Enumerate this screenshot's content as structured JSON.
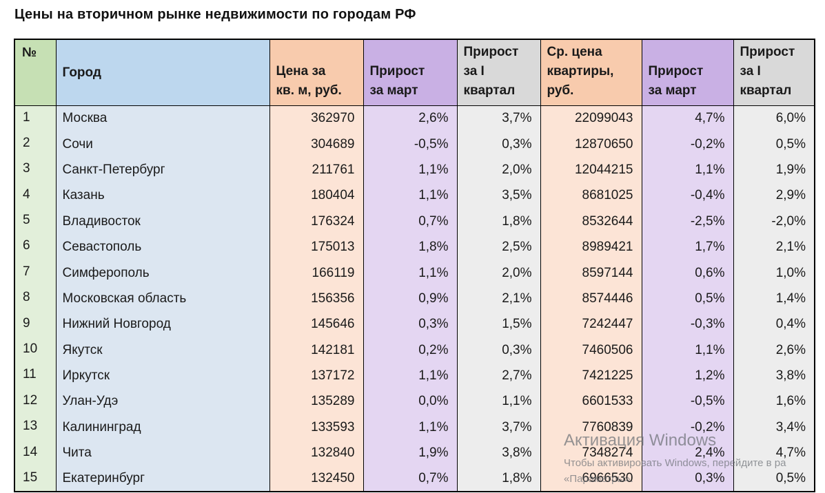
{
  "page": {
    "title": "Цены на вторичном рынке недвижимости по городам РФ"
  },
  "watermark": {
    "line1": "Активация Windows",
    "line2": "Чтобы активировать Windows, перейдите в ра",
    "line3": "«Параметры»."
  },
  "colors": {
    "header_green": "#c6e0b4",
    "body_green": "#e2efda",
    "header_blue": "#bdd7ee",
    "body_blue": "#dce6f1",
    "header_orange": "#f8cbad",
    "body_orange": "#fce4d6",
    "header_purple": "#c9b0e4",
    "body_purple": "#e4d6f2",
    "header_gray": "#d9d9d9",
    "body_gray": "#ededed",
    "border": "#000000"
  },
  "chart_data": {
    "type": "table",
    "title": "Цены на вторичном рынке недвижимости по городам РФ",
    "columns": [
      "№",
      "Город",
      "Цена за кв. м, руб.",
      "Прирост за март",
      "Прирост за I квартал",
      "Ср. цена квартиры, руб.",
      "Прирост за март",
      "Прирост за I квартал"
    ],
    "rows": [
      [
        "1",
        "Москва",
        "362970",
        "2,6%",
        "3,7%",
        "22099043",
        "4,7%",
        "6,0%"
      ],
      [
        "2",
        "Сочи",
        "304689",
        "-0,5%",
        "0,3%",
        "12870650",
        "-0,2%",
        "0,5%"
      ],
      [
        "3",
        "Санкт-Петербург",
        "211761",
        "1,1%",
        "2,0%",
        "12044215",
        "1,1%",
        "1,9%"
      ],
      [
        "4",
        "Казань",
        "180404",
        "1,1%",
        "3,5%",
        "8681025",
        "-0,4%",
        "2,9%"
      ],
      [
        "5",
        "Владивосток",
        "176324",
        "0,7%",
        "1,8%",
        "8532644",
        "-2,5%",
        "-2,0%"
      ],
      [
        "6",
        "Севастополь",
        "175013",
        "1,8%",
        "2,5%",
        "8989421",
        "1,7%",
        "2,1%"
      ],
      [
        "7",
        "Симферополь",
        "166119",
        "1,1%",
        "2,0%",
        "8597144",
        "0,6%",
        "1,0%"
      ],
      [
        "8",
        "Московская область",
        "156356",
        "0,9%",
        "2,1%",
        "8574446",
        "0,5%",
        "1,4%"
      ],
      [
        "9",
        "Нижний Новгород",
        "145646",
        "0,3%",
        "1,5%",
        "7242447",
        "-0,3%",
        "0,4%"
      ],
      [
        "10",
        "Якутск",
        "142181",
        "0,2%",
        "0,3%",
        "7460506",
        "1,1%",
        "2,6%"
      ],
      [
        "11",
        "Иркутск",
        "137172",
        "1,1%",
        "2,7%",
        "7421225",
        "1,2%",
        "3,8%"
      ],
      [
        "12",
        "Улан-Удэ",
        "135289",
        "0,0%",
        "1,1%",
        "6601533",
        "-0,5%",
        "1,6%"
      ],
      [
        "13",
        "Калининград",
        "133593",
        "1,1%",
        "3,7%",
        "7760839",
        "-0,2%",
        "3,4%"
      ],
      [
        "14",
        "Чита",
        "132840",
        "1,9%",
        "3,8%",
        "7348274",
        "2,4%",
        "4,7%"
      ],
      [
        "15",
        "Екатеринбург",
        "132450",
        "0,7%",
        "1,8%",
        "6966530",
        "0,3%",
        "0,5%"
      ]
    ]
  }
}
